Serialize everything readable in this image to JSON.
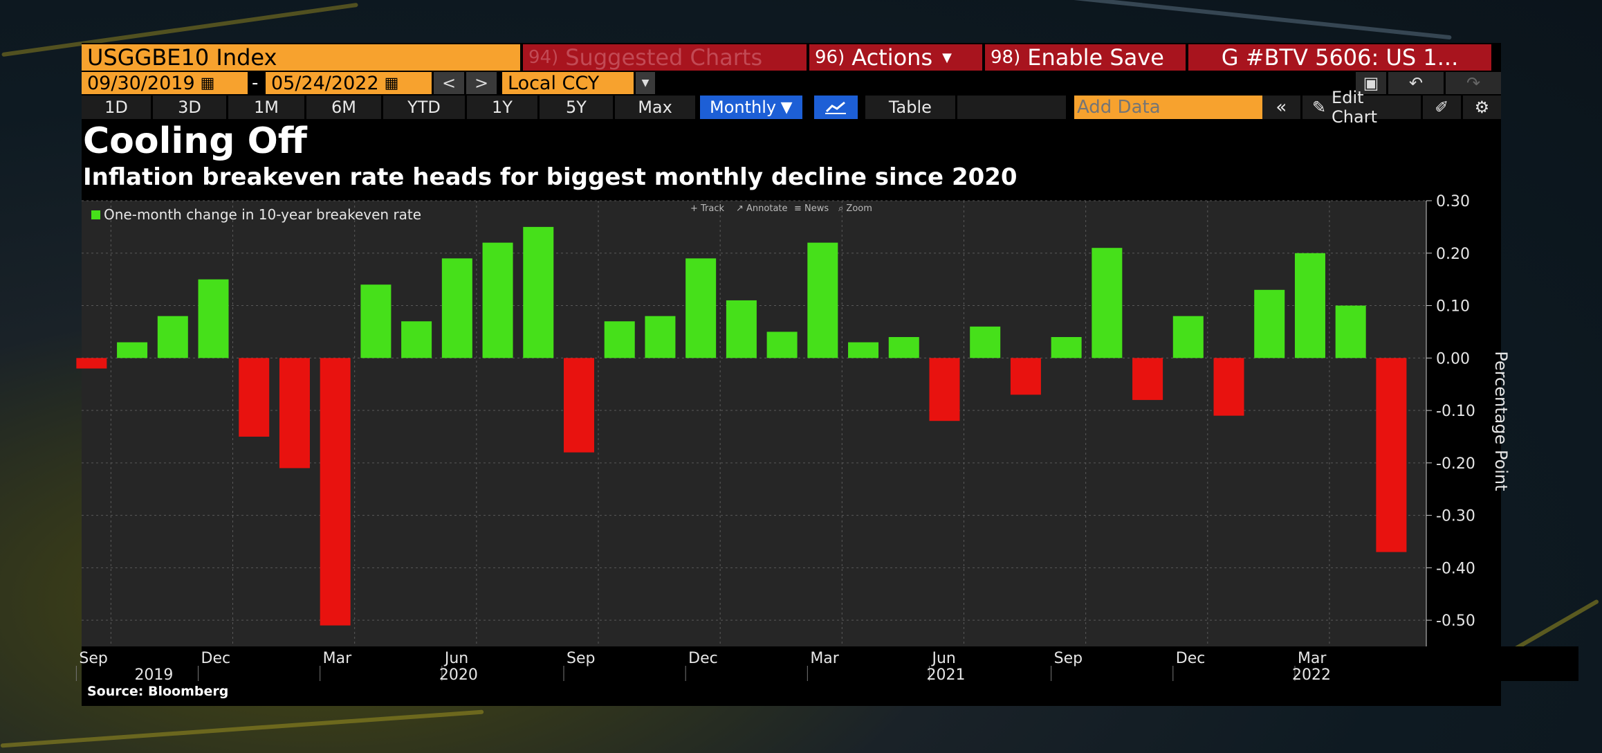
{
  "header": {
    "ticker": "USGGBE10 Index",
    "suggested": {
      "num": "94)",
      "label": "Suggested Charts"
    },
    "actions": {
      "num": "96)",
      "label": "Actions"
    },
    "enable_save": {
      "num": "98)",
      "label": "Enable Save"
    },
    "group": "G #BTV 5606: US 1..."
  },
  "range": {
    "start": "09/30/2019",
    "dash": "-",
    "end": "05/24/2022",
    "currency": "Local CCY"
  },
  "periods": [
    "1D",
    "3D",
    "1M",
    "6M",
    "YTD",
    "1Y",
    "5Y",
    "Max"
  ],
  "frequency": "Monthly",
  "table_label": "Table",
  "add_data_placeholder": "Add Data",
  "edit_chart_label": "Edit Chart",
  "tools": [
    "Track",
    "Annotate",
    "News",
    "Zoom"
  ],
  "colors": {
    "positive": "#46e01a",
    "negative": "#e8120f",
    "plot_bg": "#262626",
    "accent": "#f7a22e"
  },
  "chart_data": {
    "type": "bar",
    "title": "Cooling Off",
    "subtitle": "Inflation breakeven rate heads for biggest monthly decline since 2020",
    "legend": "One-month change in 10-year breakeven rate",
    "legend_position": "top-left",
    "ylabel": "Percentage Point",
    "ylim": [
      -0.55,
      0.3
    ],
    "yticks": [
      "0.30",
      "0.20",
      "0.10",
      "0.00",
      "-0.10",
      "-0.20",
      "-0.30",
      "-0.40",
      "-0.50"
    ],
    "grid": true,
    "categories": [
      "2019-09",
      "2019-10",
      "2019-11",
      "2019-12",
      "2020-01",
      "2020-02",
      "2020-03",
      "2020-04",
      "2020-05",
      "2020-06",
      "2020-07",
      "2020-08",
      "2020-09",
      "2020-10",
      "2020-11",
      "2020-12",
      "2021-01",
      "2021-02",
      "2021-03",
      "2021-04",
      "2021-05",
      "2021-06",
      "2021-07",
      "2021-08",
      "2021-09",
      "2021-10",
      "2021-11",
      "2021-12",
      "2022-01",
      "2022-02",
      "2022-03",
      "2022-04",
      "2022-05"
    ],
    "values": [
      -0.02,
      0.03,
      0.08,
      0.15,
      -0.15,
      -0.21,
      -0.51,
      0.14,
      0.07,
      0.19,
      0.22,
      0.25,
      -0.18,
      0.07,
      0.08,
      0.19,
      0.11,
      0.05,
      0.22,
      0.03,
      0.04,
      -0.12,
      0.06,
      -0.07,
      0.04,
      0.21,
      -0.08,
      0.08,
      -0.11,
      0.13,
      0.2,
      0.1,
      -0.37
    ],
    "month_labels": [
      "Sep",
      "Dec",
      "Mar",
      "Jun",
      "Sep",
      "Dec",
      "Mar",
      "Jun",
      "Sep",
      "Dec",
      "Mar"
    ],
    "month_label_indices": [
      0,
      3,
      6,
      9,
      12,
      15,
      18,
      21,
      24,
      27,
      30
    ],
    "year_labels": [
      "2019",
      "2020",
      "2021",
      "2022"
    ],
    "year_label_indices": [
      1.5,
      9,
      21,
      30
    ],
    "source": "Source: Bloomberg"
  }
}
